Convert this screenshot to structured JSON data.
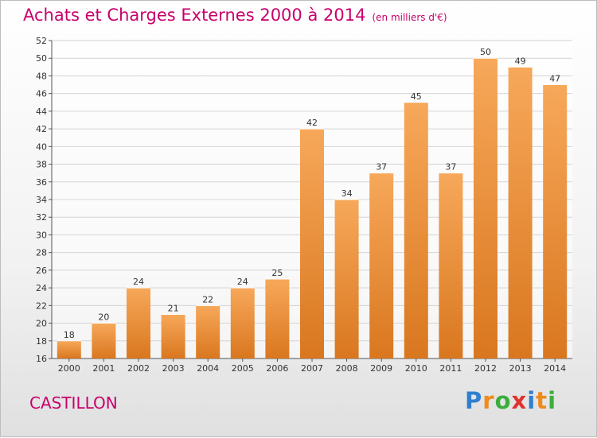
{
  "chart_data": {
    "type": "bar",
    "title": "Achats et Charges Externes 2000 à 2014",
    "subtitle": "(en milliers d'€)",
    "xlabel": "",
    "ylabel": "",
    "categories": [
      "2000",
      "2001",
      "2002",
      "2003",
      "2004",
      "2005",
      "2006",
      "2007",
      "2008",
      "2009",
      "2010",
      "2011",
      "2012",
      "2013",
      "2014"
    ],
    "values": [
      18,
      20,
      24,
      21,
      22,
      24,
      25,
      42,
      34,
      37,
      45,
      37,
      50,
      49,
      47
    ],
    "ylim": [
      16,
      52
    ],
    "ytick_step": 2,
    "grid": true,
    "legend": "none",
    "bar_color_light": "#f7a85a",
    "bar_color_dark": "#d9771f",
    "grid_color": "#d4d4d4"
  },
  "footer": {
    "location": "CASTILLON",
    "logo_letters": [
      {
        "ch": "P",
        "color": "#2f7fd0"
      },
      {
        "ch": "r",
        "color": "#f08a1c"
      },
      {
        "ch": "o",
        "color": "#3cae3c"
      },
      {
        "ch": "x",
        "color": "#e0332e"
      },
      {
        "ch": "i",
        "color": "#2f7fd0"
      },
      {
        "ch": "t",
        "color": "#f08a1c"
      },
      {
        "ch": "i",
        "color": "#3cae3c"
      }
    ]
  },
  "colors": {
    "title": "#c8006c",
    "axis": "#555555"
  }
}
